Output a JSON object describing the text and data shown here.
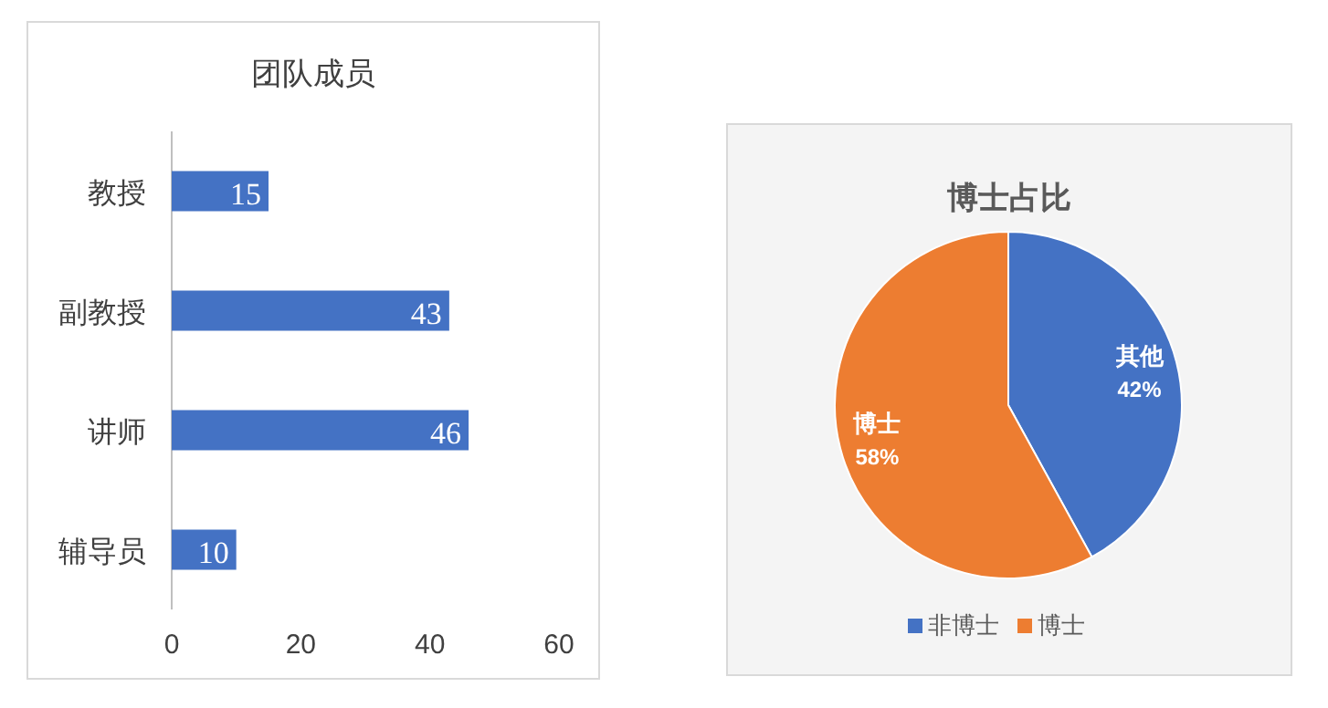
{
  "chart_data": [
    {
      "type": "bar",
      "title": "团队成员",
      "orientation": "horizontal",
      "categories": [
        "教授",
        "副教授",
        "讲师",
        "辅导员"
      ],
      "values": [
        15,
        43,
        46,
        10
      ],
      "color": "#4472c4",
      "xlim": [
        0,
        60
      ],
      "xticks": [
        0,
        20,
        40,
        60
      ],
      "data_labels": true,
      "grid": false
    },
    {
      "type": "pie",
      "title": "博士占比",
      "categories": [
        "非博士",
        "博士"
      ],
      "values": [
        42,
        58
      ],
      "colors": [
        "#4472c4",
        "#ed7d31"
      ],
      "value_labels": [
        "其他\n42%",
        "博士\n58%"
      ],
      "legend": "bottom"
    }
  ]
}
